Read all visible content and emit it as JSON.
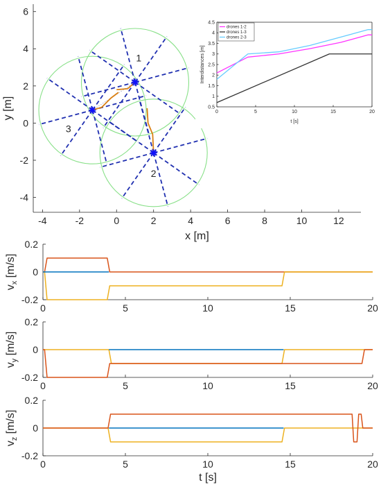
{
  "chart_data": [
    {
      "type": "scatter",
      "xlabel": "x [m]",
      "ylabel": "y [m]",
      "xlim": [
        -4.5,
        13.2
      ],
      "ylim": [
        -4.8,
        6.4
      ],
      "xticks": [
        -4,
        -2,
        0,
        2,
        4,
        6,
        8,
        10,
        12
      ],
      "yticks": [
        -4,
        -2,
        0,
        2,
        4,
        6
      ],
      "grid": false,
      "drones": [
        {
          "label": "1",
          "x": 1.0,
          "y": 2.2,
          "label_x": 1.2,
          "label_y": 3.5,
          "radius": 2.9
        },
        {
          "label": "2",
          "x": 2.0,
          "y": -1.6,
          "label_x": 2.0,
          "label_y": -2.7,
          "radius": 2.9
        },
        {
          "label": "3",
          "x": -1.3,
          "y": 0.7,
          "label_x": -2.6,
          "label_y": -0.3,
          "radius": 2.9
        }
      ],
      "ray_length": 3.0,
      "ray_angles_deg": [
        15,
        55,
        105,
        145,
        195,
        235,
        285,
        325
      ],
      "trajectories": [
        {
          "drone": "1",
          "x": [
            1.0,
            0.6,
            0.0
          ],
          "y": [
            2.2,
            1.85,
            1.8
          ]
        },
        {
          "drone": "2",
          "x": [
            2.0,
            1.95,
            1.7,
            1.65
          ],
          "y": [
            -1.6,
            -0.6,
            0.0,
            0.8
          ]
        },
        {
          "drone": "3",
          "x": [
            -1.3,
            -0.8,
            -0.3,
            0.1
          ],
          "y": [
            0.7,
            0.85,
            1.35,
            1.65
          ]
        }
      ],
      "dotted_links": [
        {
          "x": [
            -1.3,
            1.0
          ],
          "y": [
            0.7,
            2.2
          ]
        }
      ]
    },
    {
      "type": "line",
      "xlabel": "t [s]",
      "ylabel": "Interdistances [m]",
      "xlim": [
        0,
        20
      ],
      "ylim": [
        0.5,
        4.5
      ],
      "xticks": [
        0,
        5,
        10,
        15,
        20
      ],
      "yticks": [
        0.5,
        1,
        1.5,
        2,
        2.5,
        3,
        3.5,
        4,
        4.5
      ],
      "legend": "top-left",
      "series": [
        {
          "name": "drones 1-2",
          "color": "#ff33ff",
          "x": [
            0,
            4,
            8,
            12,
            16,
            19.5,
            20
          ],
          "y": [
            2.1,
            2.85,
            3.0,
            3.25,
            3.55,
            3.9,
            3.9
          ]
        },
        {
          "name": "drones 1-3",
          "color": "#333333",
          "x": [
            0,
            14.5,
            20
          ],
          "y": [
            0.7,
            3.0,
            3.0
          ]
        },
        {
          "name": "drones 2-3",
          "color": "#66ccff",
          "x": [
            0,
            4,
            8,
            12,
            16,
            19.5,
            20
          ],
          "y": [
            1.8,
            3.0,
            3.1,
            3.4,
            3.8,
            4.15,
            4.15
          ]
        }
      ]
    },
    {
      "type": "line",
      "ylabel": "v_x [m/s]",
      "xlim": [
        0,
        20
      ],
      "ylim": [
        -0.2,
        0.2
      ],
      "xticks": [
        0,
        5,
        10,
        15,
        20
      ],
      "yticks": [
        -0.2,
        0,
        0.2
      ],
      "series": [
        {
          "color": "#d95319",
          "x": [
            0,
            0.1,
            0.25,
            3.9,
            4.05,
            20
          ],
          "y": [
            0,
            0,
            0.1,
            0.1,
            0,
            0
          ]
        },
        {
          "color": "#edb120",
          "x": [
            0,
            0.1,
            0.25,
            3.9,
            4.05,
            14.5,
            14.65,
            20
          ],
          "y": [
            0,
            0,
            -0.2,
            -0.2,
            -0.1,
            -0.1,
            0,
            0
          ]
        },
        {
          "color": "#0072bd",
          "x": [
            0,
            4.0
          ],
          "y": [
            0,
            0
          ]
        }
      ]
    },
    {
      "type": "line",
      "ylabel": "v_y [m/s]",
      "xlim": [
        0,
        20
      ],
      "ylim": [
        -0.2,
        0.2
      ],
      "xticks": [
        0,
        5,
        10,
        15,
        20
      ],
      "yticks": [
        -0.2,
        0,
        0.2
      ],
      "series": [
        {
          "color": "#edb120",
          "x": [
            0,
            4.0,
            4.15,
            14.5,
            14.65,
            20
          ],
          "y": [
            0,
            0,
            -0.1,
            -0.1,
            0,
            0
          ]
        },
        {
          "color": "#d95319",
          "x": [
            0,
            0.1,
            0.25,
            3.9,
            4.05,
            19.35,
            19.5,
            20
          ],
          "y": [
            0,
            0,
            -0.2,
            -0.2,
            -0.1,
            -0.1,
            0,
            0
          ]
        },
        {
          "color": "#0072bd",
          "x": [
            4.0,
            14.6
          ],
          "y": [
            0,
            0
          ]
        }
      ]
    },
    {
      "type": "line",
      "xlabel": "t [s]",
      "ylabel": "v_z [m/s]",
      "xlim": [
        0,
        20
      ],
      "ylim": [
        -0.2,
        0.2
      ],
      "xticks": [
        0,
        5,
        10,
        15,
        20
      ],
      "yticks": [
        -0.2,
        0,
        0.2
      ],
      "series": [
        {
          "color": "#edb120",
          "x": [
            0,
            3.95,
            4.1,
            14.5,
            14.65,
            20
          ],
          "y": [
            0,
            0,
            -0.1,
            -0.1,
            0,
            0
          ]
        },
        {
          "color": "#0072bd",
          "x": [
            4.0,
            14.6
          ],
          "y": [
            0,
            0
          ]
        },
        {
          "color": "#d95319",
          "x": [
            0,
            3.95,
            4.1,
            18.75,
            18.85,
            19.05,
            19.15,
            19.3,
            19.4,
            19.55,
            19.65,
            20
          ],
          "y": [
            0,
            0,
            0.1,
            0.1,
            -0.1,
            -0.1,
            0.1,
            0.1,
            0,
            0,
            0,
            0
          ]
        }
      ]
    }
  ]
}
